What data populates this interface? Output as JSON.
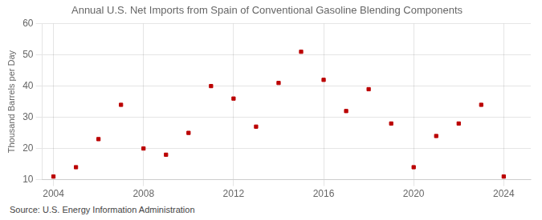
{
  "chart_data": {
    "type": "scatter",
    "title": "Annual U.S. Net Imports from Spain of Conventional Gasoline Blending Components",
    "ylabel": "Thousand Barrels per Day",
    "source": "Source: U.S. Energy Information Administration",
    "x": [
      2004,
      2005,
      2006,
      2007,
      2008,
      2009,
      2010,
      2011,
      2012,
      2013,
      2014,
      2015,
      2016,
      2017,
      2018,
      2019,
      2020,
      2021,
      2022,
      2023,
      2024
    ],
    "values": [
      11,
      14,
      23,
      34,
      20,
      18,
      25,
      40,
      36,
      27,
      41,
      51,
      42,
      32,
      39,
      28,
      14,
      24,
      28,
      34,
      11
    ],
    "color": "#bb0000",
    "marker": "square",
    "xlim": [
      2003.5,
      2025.2
    ],
    "xticks": [
      2004,
      2008,
      2012,
      2016,
      2020,
      2024
    ],
    "ylim": [
      10,
      60
    ],
    "yticks": [
      10,
      20,
      30,
      40,
      50,
      60
    ],
    "grid": true
  }
}
